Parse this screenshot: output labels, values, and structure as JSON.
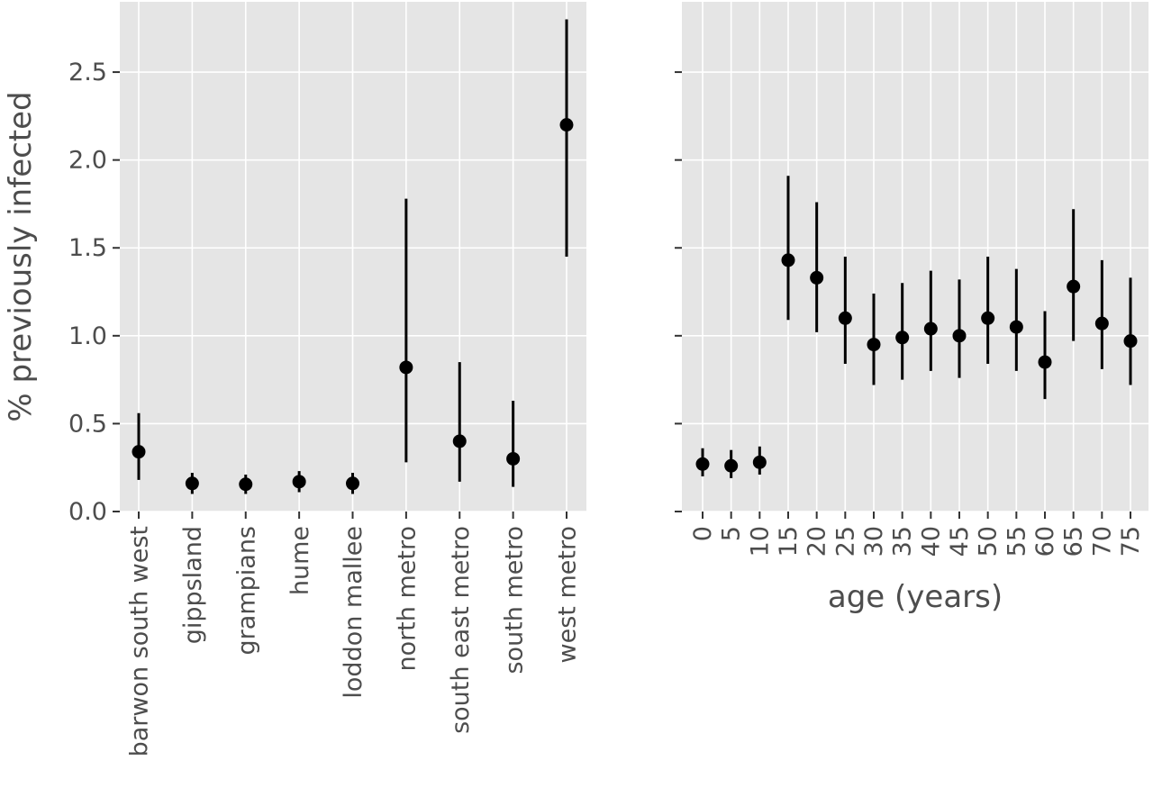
{
  "chart_data": [
    {
      "type": "scatter",
      "title": "",
      "xlabel": "",
      "ylabel": "% previously infected",
      "ylim": [
        0,
        2.9
      ],
      "yticks": [
        0.0,
        0.5,
        1.0,
        1.5,
        2.0,
        2.5
      ],
      "ytick_labels": [
        "0.0",
        "0.5",
        "1.0",
        "1.5",
        "2.0",
        "2.5"
      ],
      "grid": true,
      "categories": [
        "barwon south west",
        "gippsland",
        "grampians",
        "hume",
        "loddon mallee",
        "north metro",
        "south east metro",
        "south metro",
        "west metro"
      ],
      "values": [
        0.34,
        0.16,
        0.155,
        0.17,
        0.16,
        0.82,
        0.4,
        0.3,
        2.2
      ],
      "lower": [
        0.18,
        0.1,
        0.1,
        0.11,
        0.1,
        0.28,
        0.17,
        0.14,
        1.45
      ],
      "upper": [
        0.56,
        0.22,
        0.21,
        0.23,
        0.22,
        1.78,
        0.85,
        0.63,
        2.8
      ]
    },
    {
      "type": "scatter",
      "title": "",
      "xlabel": "age (years)",
      "ylabel": "",
      "ylim": [
        0,
        2.9
      ],
      "shared_y": true,
      "grid": true,
      "categories": [
        "0",
        "5",
        "10",
        "15",
        "20",
        "25",
        "30",
        "35",
        "40",
        "45",
        "50",
        "55",
        "60",
        "65",
        "70",
        "75"
      ],
      "values": [
        0.27,
        0.26,
        0.28,
        1.43,
        1.33,
        1.1,
        0.95,
        0.99,
        1.04,
        1.0,
        1.1,
        1.05,
        0.85,
        1.28,
        1.07,
        0.97
      ],
      "lower": [
        0.2,
        0.19,
        0.21,
        1.09,
        1.02,
        0.84,
        0.72,
        0.75,
        0.8,
        0.76,
        0.84,
        0.8,
        0.64,
        0.97,
        0.81,
        0.72
      ],
      "upper": [
        0.36,
        0.35,
        0.37,
        1.91,
        1.76,
        1.45,
        1.24,
        1.3,
        1.37,
        1.32,
        1.45,
        1.38,
        1.14,
        1.72,
        1.43,
        1.33
      ]
    }
  ]
}
